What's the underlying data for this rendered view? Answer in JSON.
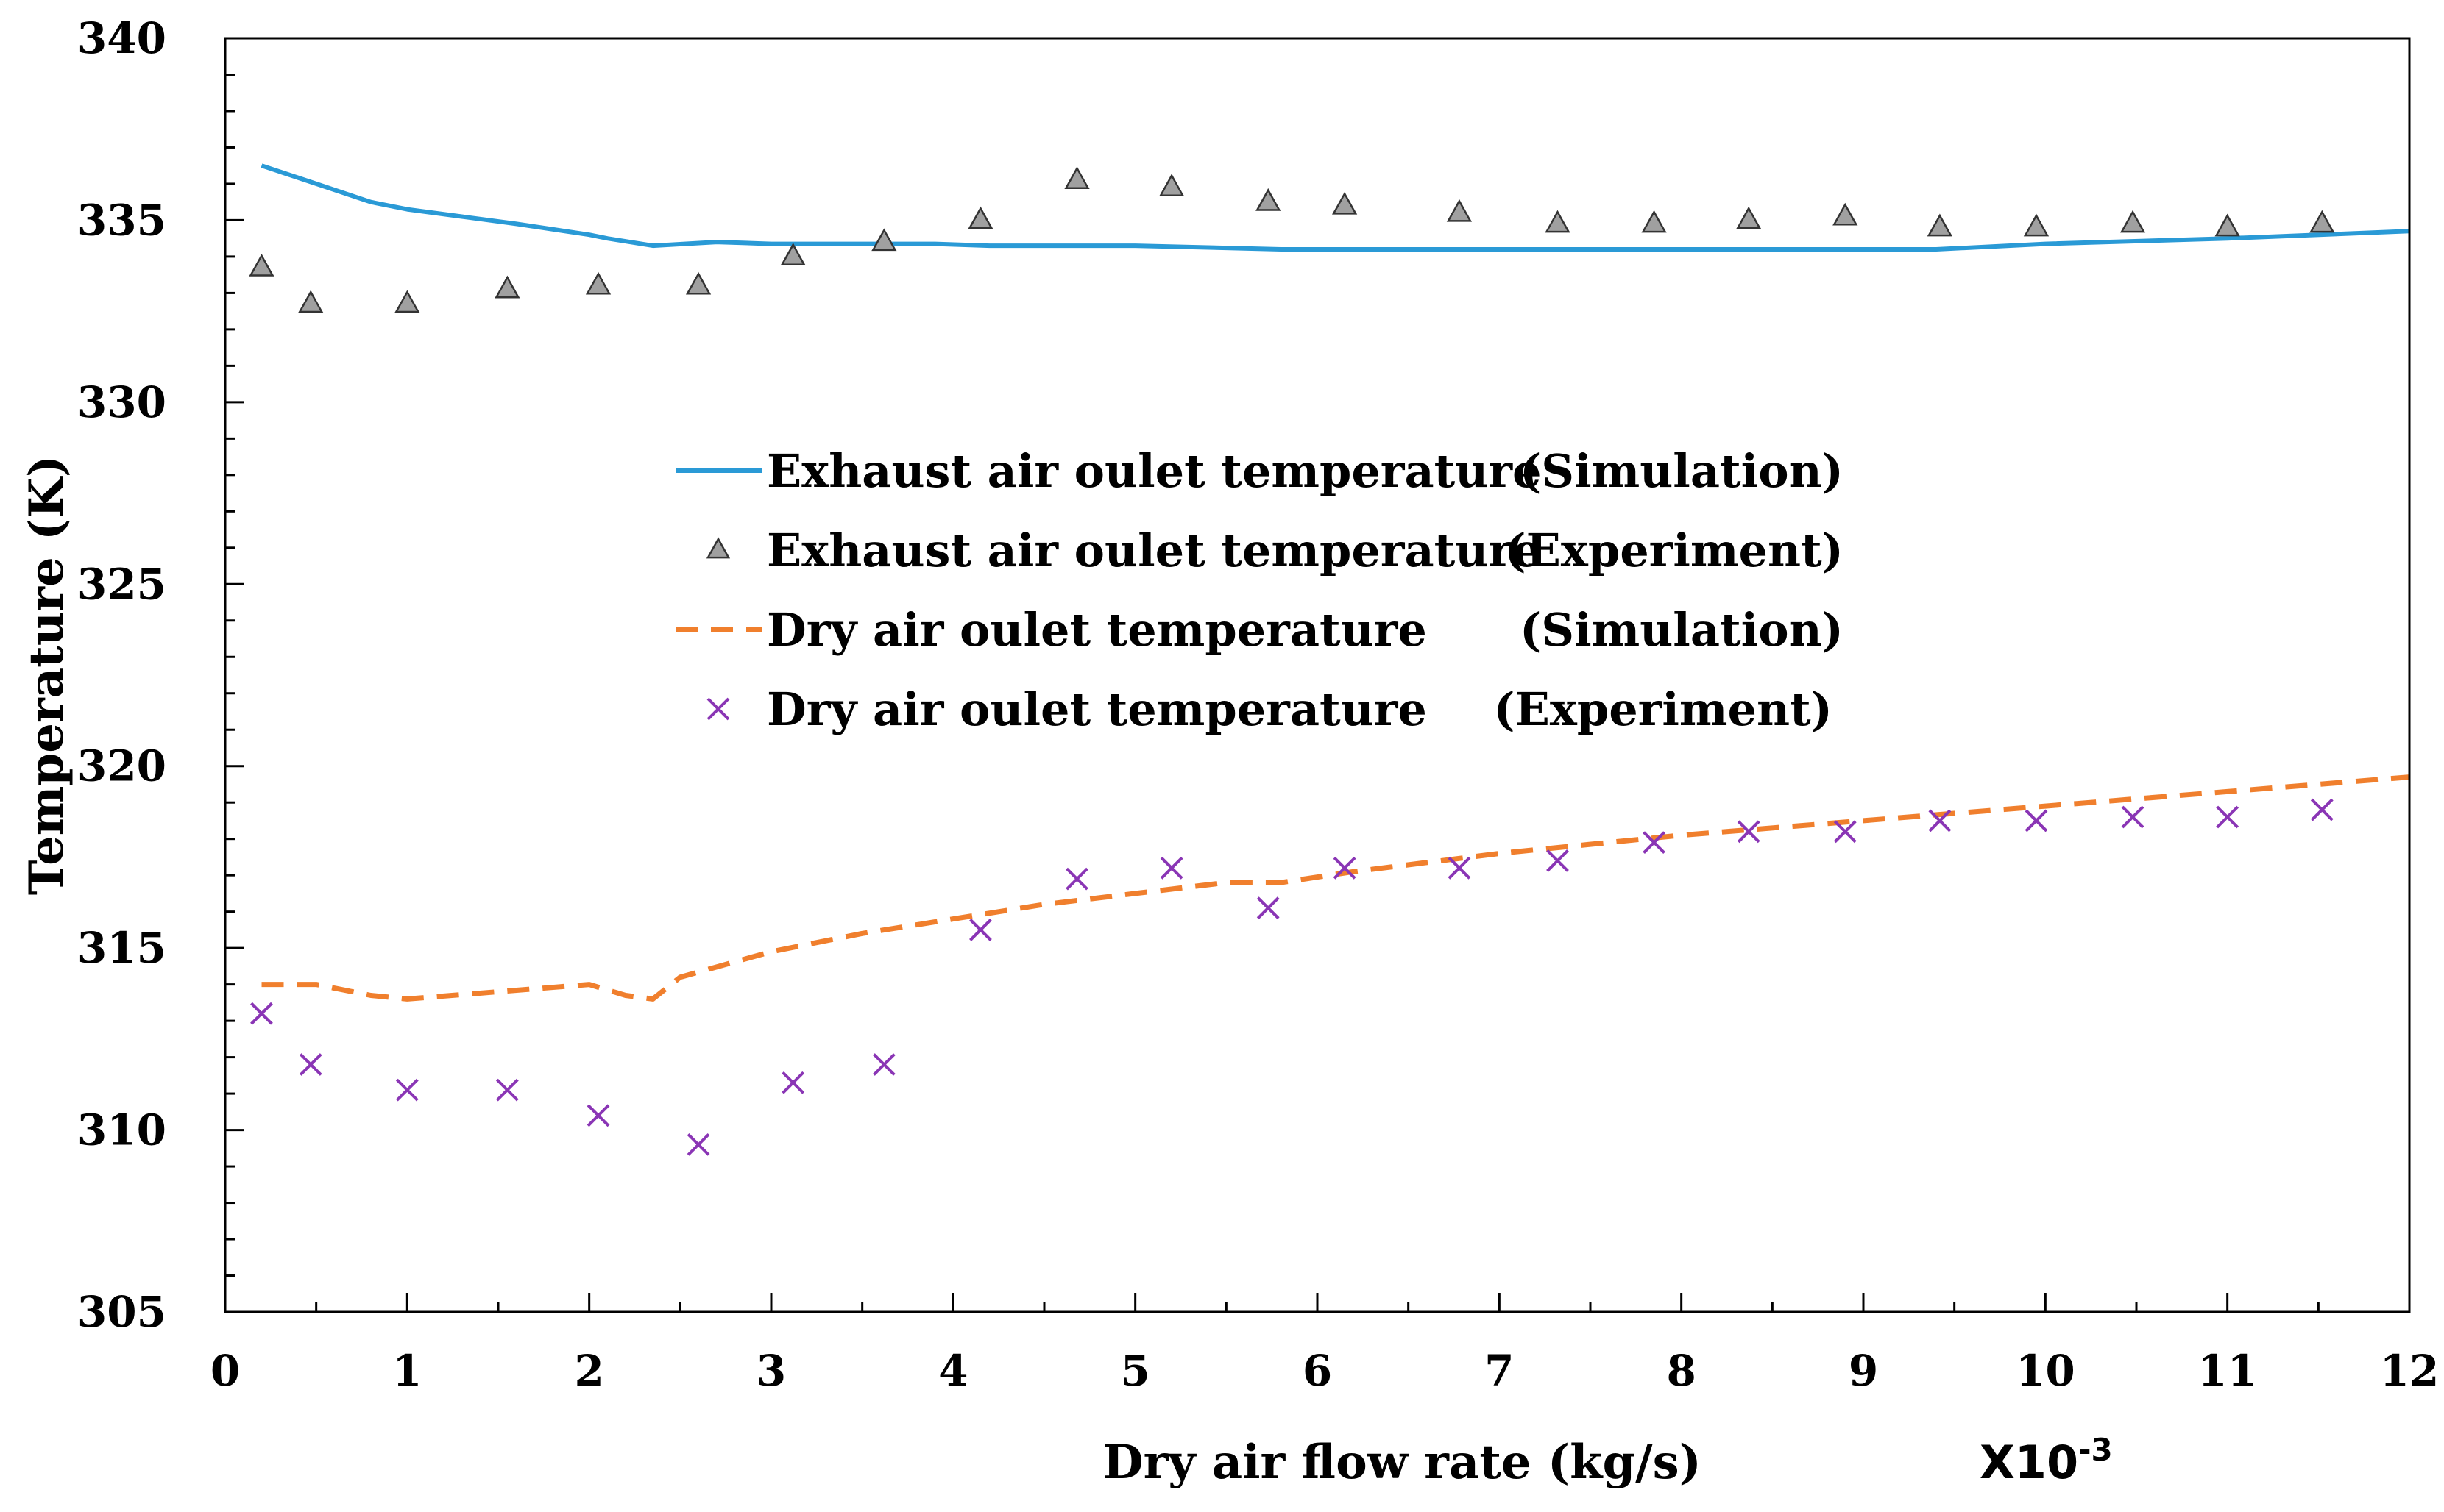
{
  "chart_data": {
    "type": "line",
    "title": "",
    "xlabel": "Dry air flow rate (kg/s)",
    "x_scale_note": "X10",
    "x_scale_exponent": "-3",
    "ylabel": "Temperature (K)",
    "xlim": [
      0,
      12
    ],
    "ylim": [
      305,
      340
    ],
    "x_ticks": [
      0,
      1,
      2,
      3,
      4,
      5,
      6,
      7,
      8,
      9,
      10,
      11,
      12
    ],
    "x_tick_labels": [
      "0",
      "1",
      "2",
      "3",
      "4",
      "5",
      "6",
      "7",
      "8",
      "9",
      "10",
      "11",
      "12"
    ],
    "y_ticks": [
      305,
      310,
      315,
      320,
      325,
      330,
      335,
      340
    ],
    "y_tick_labels": [
      "305",
      "310",
      "315",
      "320",
      "325",
      "330",
      "335",
      "340"
    ],
    "grid": false,
    "legend_position": "center",
    "series": [
      {
        "name": "Exhaust air oulet temperature (Simulation)",
        "legend_left": "Exhaust air oulet temperature",
        "legend_right": "(Simulation)",
        "kind": "line",
        "style": "solid",
        "color": "#2a9ad6",
        "x": [
          0.2,
          0.5,
          0.8,
          1.0,
          1.3,
          1.6,
          2.0,
          2.1,
          2.35,
          2.7,
          3.0,
          3.5,
          3.9,
          4.2,
          5.0,
          5.8,
          6.5,
          7.5,
          8.5,
          9.4,
          10.0,
          11.0,
          12.0
        ],
        "y": [
          336.5,
          336.0,
          335.5,
          335.3,
          335.1,
          334.9,
          334.6,
          334.5,
          334.3,
          334.4,
          334.35,
          334.35,
          334.35,
          334.3,
          334.3,
          334.2,
          334.2,
          334.2,
          334.2,
          334.2,
          334.35,
          334.5,
          334.7
        ]
      },
      {
        "name": "Exhaust air oulet temperature (Experiment)",
        "legend_left": "Exhaust air oulet temperature",
        "legend_right": "(Experiment)",
        "kind": "scatter",
        "marker": "triangle",
        "color": "#a0a0a0",
        "x": [
          0.2,
          0.47,
          1.0,
          1.55,
          2.05,
          2.6,
          3.12,
          3.62,
          4.15,
          4.68,
          5.2,
          5.73,
          6.15,
          6.78,
          7.32,
          7.85,
          8.37,
          8.9,
          9.42,
          9.95,
          10.48,
          11.0,
          11.52
        ],
        "y": [
          333.7,
          332.7,
          332.7,
          333.1,
          333.2,
          333.2,
          334.0,
          334.4,
          335.0,
          336.1,
          335.9,
          335.5,
          335.4,
          335.2,
          334.9,
          334.9,
          335.0,
          335.1,
          334.8,
          334.8,
          334.9,
          334.8,
          334.9
        ]
      },
      {
        "name": "Dry air oulet temperature (Simulation)",
        "legend_left": "Dry air oulet temperature",
        "legend_right": "(Simulation)",
        "kind": "line",
        "style": "dashed",
        "color": "#f07f2d",
        "x": [
          0.2,
          0.5,
          0.8,
          1.0,
          1.5,
          2.0,
          2.2,
          2.35,
          2.5,
          3.0,
          3.5,
          4.0,
          4.5,
          5.0,
          5.5,
          5.8,
          6.2,
          7.0,
          8.0,
          9.0,
          10.0,
          11.0,
          12.0
        ],
        "y": [
          314.0,
          314.0,
          313.7,
          313.6,
          313.8,
          314.0,
          313.7,
          313.6,
          314.2,
          314.9,
          315.4,
          315.8,
          316.2,
          316.5,
          316.8,
          316.8,
          317.1,
          317.6,
          318.1,
          318.5,
          318.9,
          319.3,
          319.7
        ]
      },
      {
        "name": "Dry air oulet temperature (Experiment)",
        "legend_left": "Dry air oulet temperature",
        "legend_right": "(Experiment)",
        "kind": "scatter",
        "marker": "x",
        "color": "#8a35b5",
        "x": [
          0.2,
          0.47,
          1.0,
          1.55,
          2.05,
          2.6,
          3.12,
          3.62,
          4.15,
          4.68,
          5.2,
          5.73,
          6.15,
          6.78,
          7.32,
          7.85,
          8.37,
          8.9,
          9.42,
          9.95,
          10.48,
          11.0,
          11.52
        ],
        "y": [
          313.2,
          311.8,
          311.1,
          311.1,
          310.4,
          309.6,
          311.3,
          311.8,
          315.5,
          316.9,
          317.2,
          316.1,
          317.2,
          317.2,
          317.4,
          317.9,
          318.2,
          318.2,
          318.5,
          318.5,
          318.6,
          318.6,
          318.8
        ]
      }
    ]
  }
}
